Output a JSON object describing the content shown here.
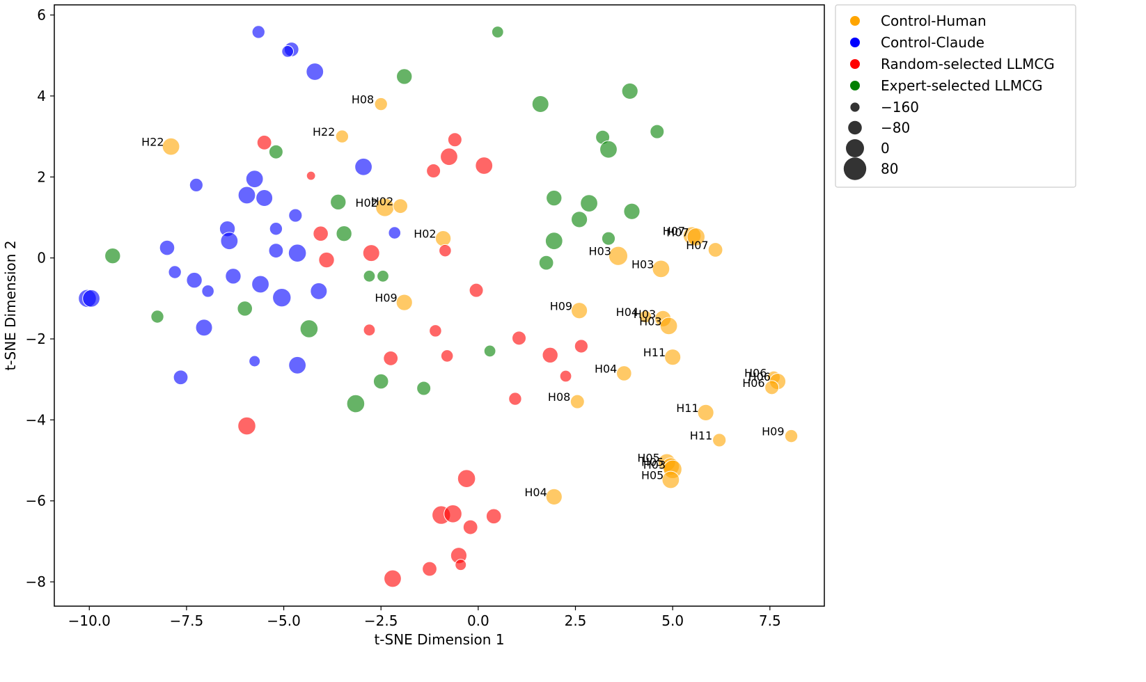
{
  "chart_data": {
    "type": "scatter",
    "title": "",
    "xlabel": "t-SNE Dimension 1",
    "ylabel": "t-SNE Dimension 2",
    "xlim": [
      -10.9,
      8.9
    ],
    "ylim": [
      -8.6,
      6.25
    ],
    "xticks": [
      -10.0,
      -7.5,
      -5.0,
      -2.5,
      0.0,
      2.5,
      5.0,
      7.5
    ],
    "xtick_labels": [
      "−10.0",
      "−7.5",
      "−5.0",
      "−2.5",
      "0.0",
      "2.5",
      "5.0",
      "7.5"
    ],
    "yticks": [
      -8,
      -6,
      -4,
      -2,
      0,
      2,
      4,
      6
    ],
    "ytick_labels": [
      "−8",
      "−6",
      "−4",
      "−2",
      "0",
      "2",
      "4",
      "6"
    ],
    "grid": false,
    "legend_position": "outside-top-right",
    "size_legend": {
      "values": [
        -160,
        -80,
        0,
        80
      ],
      "labels": [
        "−160",
        "−80",
        "0",
        "80"
      ]
    },
    "colors": {
      "Control-Human": "#ffa500",
      "Control-Claude": "#0000ff",
      "Random-selected LLMCG": "#ff0000",
      "Expert-selected LLMCG": "#008000",
      "axis": "#000000",
      "legend_border": "#cccccc"
    },
    "series": [
      {
        "name": "Control-Human",
        "points": [
          {
            "x": -2.5,
            "y": 3.8,
            "s": -120,
            "label": "H08"
          },
          {
            "x": -3.5,
            "y": 3.0,
            "s": -120,
            "label": "H22"
          },
          {
            "x": -7.9,
            "y": 2.75,
            "s": -40,
            "label": "H22"
          },
          {
            "x": -2.4,
            "y": 1.25,
            "s": -20,
            "label": "H02"
          },
          {
            "x": -2.0,
            "y": 1.28,
            "s": -90,
            "label": "H02"
          },
          {
            "x": -0.9,
            "y": 0.48,
            "s": -70,
            "label": "H02"
          },
          {
            "x": 5.5,
            "y": 0.55,
            "s": -30,
            "label": "H07"
          },
          {
            "x": 5.6,
            "y": 0.52,
            "s": -30,
            "label": "H07"
          },
          {
            "x": 6.1,
            "y": 0.2,
            "s": -90,
            "label": "H07"
          },
          {
            "x": 3.6,
            "y": 0.05,
            "s": -10,
            "label": "H03"
          },
          {
            "x": 4.7,
            "y": -0.27,
            "s": -40,
            "label": "H03"
          },
          {
            "x": -1.9,
            "y": -1.1,
            "s": -60,
            "label": "H09"
          },
          {
            "x": 2.6,
            "y": -1.3,
            "s": -60,
            "label": "H09"
          },
          {
            "x": 4.3,
            "y": -1.45,
            "s": -130,
            "label": "H04"
          },
          {
            "x": 4.75,
            "y": -1.5,
            "s": -60,
            "label": "H03"
          },
          {
            "x": 4.9,
            "y": -1.68,
            "s": -40,
            "label": "H03"
          },
          {
            "x": 5.0,
            "y": -2.45,
            "s": -60,
            "label": "H11"
          },
          {
            "x": 3.75,
            "y": -2.85,
            "s": -80,
            "label": "H04"
          },
          {
            "x": 7.6,
            "y": -2.95,
            "s": -120,
            "label": "H06"
          },
          {
            "x": 7.7,
            "y": -3.05,
            "s": -60,
            "label": "H06"
          },
          {
            "x": 7.55,
            "y": -3.2,
            "s": -100,
            "label": "H06"
          },
          {
            "x": 2.55,
            "y": -3.55,
            "s": -100,
            "label": "H08"
          },
          {
            "x": 5.85,
            "y": -3.82,
            "s": -60,
            "label": "H11"
          },
          {
            "x": 6.2,
            "y": -4.5,
            "s": -110,
            "label": "H11"
          },
          {
            "x": 8.05,
            "y": -4.4,
            "s": -120,
            "label": "H09"
          },
          {
            "x": 4.85,
            "y": -5.05,
            "s": -40,
            "label": "H05"
          },
          {
            "x": 4.95,
            "y": -5.15,
            "s": -40,
            "label": "H05"
          },
          {
            "x": 5.0,
            "y": -5.22,
            "s": -20,
            "label": "H03"
          },
          {
            "x": 4.95,
            "y": -5.48,
            "s": -40,
            "label": "H05"
          },
          {
            "x": 1.95,
            "y": -5.9,
            "s": -60,
            "label": "H04"
          }
        ]
      },
      {
        "name": "Control-Claude",
        "points": [
          {
            "x": -5.65,
            "y": 5.58,
            "s": -120
          },
          {
            "x": -4.8,
            "y": 5.15,
            "s": -90
          },
          {
            "x": -4.9,
            "y": 5.1,
            "s": -140
          },
          {
            "x": -4.2,
            "y": 4.6,
            "s": -40
          },
          {
            "x": -2.95,
            "y": 2.25,
            "s": -40
          },
          {
            "x": -5.75,
            "y": 1.95,
            "s": -40
          },
          {
            "x": -7.25,
            "y": 1.8,
            "s": -110
          },
          {
            "x": -5.95,
            "y": 1.55,
            "s": -40
          },
          {
            "x": -5.5,
            "y": 1.48,
            "s": -50
          },
          {
            "x": -4.7,
            "y": 1.05,
            "s": -110
          },
          {
            "x": -6.45,
            "y": 0.72,
            "s": -70
          },
          {
            "x": -5.2,
            "y": 0.72,
            "s": -120
          },
          {
            "x": -6.4,
            "y": 0.42,
            "s": -40
          },
          {
            "x": -2.15,
            "y": 0.62,
            "s": -130
          },
          {
            "x": -8.0,
            "y": 0.25,
            "s": -80
          },
          {
            "x": -5.2,
            "y": 0.18,
            "s": -90
          },
          {
            "x": -4.65,
            "y": 0.12,
            "s": -30
          },
          {
            "x": -7.8,
            "y": -0.35,
            "s": -120
          },
          {
            "x": -7.3,
            "y": -0.55,
            "s": -70
          },
          {
            "x": -6.3,
            "y": -0.45,
            "s": -70
          },
          {
            "x": -5.6,
            "y": -0.65,
            "s": -40
          },
          {
            "x": -6.95,
            "y": -0.82,
            "s": -130
          },
          {
            "x": -4.1,
            "y": -0.82,
            "s": -50
          },
          {
            "x": -5.05,
            "y": -0.98,
            "s": -20
          },
          {
            "x": -10.05,
            "y": -1.0,
            "s": -30
          },
          {
            "x": -9.95,
            "y": -1.0,
            "s": -40
          },
          {
            "x": -7.05,
            "y": -1.72,
            "s": -50
          },
          {
            "x": -5.75,
            "y": -2.55,
            "s": -150
          },
          {
            "x": -4.65,
            "y": -2.65,
            "s": -40
          },
          {
            "x": -7.65,
            "y": -2.95,
            "s": -90
          }
        ]
      },
      {
        "name": "Random-selected LLMCG",
        "points": [
          {
            "x": -5.5,
            "y": 2.85,
            "s": -90
          },
          {
            "x": -0.6,
            "y": 2.92,
            "s": -100
          },
          {
            "x": -0.75,
            "y": 2.5,
            "s": -40
          },
          {
            "x": 0.15,
            "y": 2.28,
            "s": -40
          },
          {
            "x": -1.15,
            "y": 2.15,
            "s": -100
          },
          {
            "x": -4.3,
            "y": 2.03,
            "s": -190
          },
          {
            "x": -4.05,
            "y": 0.6,
            "s": -80
          },
          {
            "x": -2.75,
            "y": 0.12,
            "s": -50
          },
          {
            "x": -0.85,
            "y": 0.18,
            "s": -130
          },
          {
            "x": -3.9,
            "y": -0.05,
            "s": -70
          },
          {
            "x": -0.05,
            "y": -0.8,
            "s": -100
          },
          {
            "x": -2.8,
            "y": -1.78,
            "s": -140
          },
          {
            "x": -1.1,
            "y": -1.8,
            "s": -130
          },
          {
            "x": 1.05,
            "y": -1.98,
            "s": -100
          },
          {
            "x": 2.65,
            "y": -2.18,
            "s": -110
          },
          {
            "x": 1.85,
            "y": -2.4,
            "s": -70
          },
          {
            "x": -2.25,
            "y": -2.48,
            "s": -90
          },
          {
            "x": -0.8,
            "y": -2.42,
            "s": -130
          },
          {
            "x": 2.25,
            "y": -2.92,
            "s": -140
          },
          {
            "x": 0.95,
            "y": -3.48,
            "s": -120
          },
          {
            "x": -5.95,
            "y": -4.15,
            "s": -30
          },
          {
            "x": -0.3,
            "y": -5.45,
            "s": -30
          },
          {
            "x": -0.95,
            "y": -6.35,
            "s": -20
          },
          {
            "x": -0.65,
            "y": -6.32,
            "s": -30
          },
          {
            "x": 0.4,
            "y": -6.38,
            "s": -80
          },
          {
            "x": -0.2,
            "y": -6.65,
            "s": -90
          },
          {
            "x": -0.5,
            "y": -7.35,
            "s": -60
          },
          {
            "x": -0.45,
            "y": -7.58,
            "s": -150
          },
          {
            "x": -1.25,
            "y": -7.68,
            "s": -90
          },
          {
            "x": -2.2,
            "y": -7.92,
            "s": -40
          }
        ]
      },
      {
        "name": "Expert-selected LLMCG",
        "points": [
          {
            "x": 0.5,
            "y": 5.58,
            "s": -140
          },
          {
            "x": -1.9,
            "y": 4.48,
            "s": -70
          },
          {
            "x": 3.9,
            "y": 4.12,
            "s": -60
          },
          {
            "x": 1.6,
            "y": 3.8,
            "s": -50
          },
          {
            "x": 4.6,
            "y": 3.12,
            "s": -100
          },
          {
            "x": 3.2,
            "y": 2.98,
            "s": -100
          },
          {
            "x": 3.35,
            "y": 2.68,
            "s": -40
          },
          {
            "x": -5.2,
            "y": 2.62,
            "s": -100
          },
          {
            "x": 1.95,
            "y": 1.48,
            "s": -70
          },
          {
            "x": -3.6,
            "y": 1.38,
            "s": -70
          },
          {
            "x": 2.85,
            "y": 1.35,
            "s": -40
          },
          {
            "x": 3.95,
            "y": 1.15,
            "s": -60
          },
          {
            "x": 2.6,
            "y": 0.95,
            "s": -60
          },
          {
            "x": -3.45,
            "y": 0.6,
            "s": -70
          },
          {
            "x": 3.35,
            "y": 0.48,
            "s": -110
          },
          {
            "x": 1.95,
            "y": 0.42,
            "s": -40
          },
          {
            "x": -9.4,
            "y": 0.05,
            "s": -70
          },
          {
            "x": 1.75,
            "y": -0.12,
            "s": -90
          },
          {
            "x": -2.8,
            "y": -0.45,
            "s": -140
          },
          {
            "x": -2.45,
            "y": -0.45,
            "s": -140
          },
          {
            "x": -6.0,
            "y": -1.25,
            "s": -80
          },
          {
            "x": -8.25,
            "y": -1.45,
            "s": -120
          },
          {
            "x": -4.35,
            "y": -1.75,
            "s": -30
          },
          {
            "x": 0.3,
            "y": -2.3,
            "s": -140
          },
          {
            "x": -2.5,
            "y": -3.05,
            "s": -80
          },
          {
            "x": -1.4,
            "y": -3.22,
            "s": -100
          },
          {
            "x": -3.15,
            "y": -3.6,
            "s": -30
          }
        ]
      }
    ]
  }
}
